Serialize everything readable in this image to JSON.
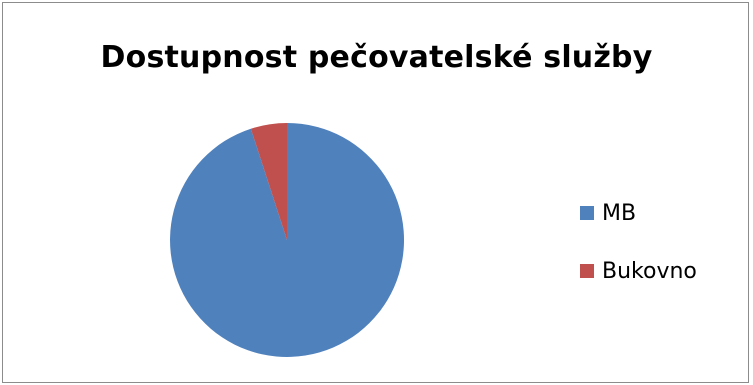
{
  "chart_data": {
    "type": "pie",
    "title": "Dostupnost pečovatelské služby",
    "categories": [
      "MB",
      "Bukovno"
    ],
    "values": [
      95,
      5
    ],
    "colors": [
      "#4f81bd",
      "#c0504d"
    ],
    "legend_position": "right"
  }
}
